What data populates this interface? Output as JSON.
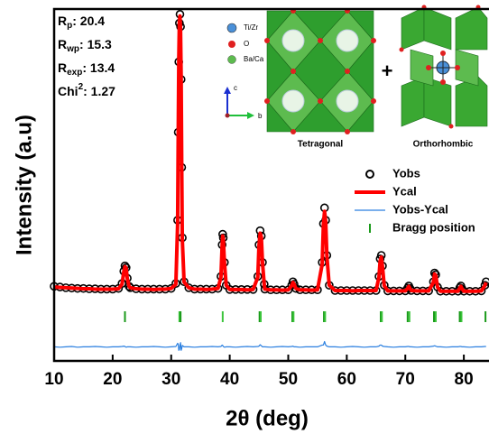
{
  "chart_data": {
    "type": "line",
    "x_label": "2θ (deg)",
    "y_label": "Intensity (a.u)",
    "xlim": [
      10,
      84.3
    ],
    "ylim": [
      0,
      100
    ],
    "xticks": [
      10,
      20,
      30,
      40,
      50,
      60,
      70,
      80
    ],
    "legend": "right",
    "x": [
      10,
      11,
      12,
      13,
      14,
      15,
      16,
      17,
      18,
      19,
      20,
      21,
      21.6,
      21.9,
      22.1,
      22.3,
      22.5,
      22.8,
      23,
      24,
      25,
      26,
      27,
      28,
      29,
      30,
      30.8,
      31.1,
      31.2,
      31.3,
      31.4,
      31.5,
      31.6,
      31.7,
      31.8,
      31.9,
      32.2,
      33,
      34,
      35,
      36,
      37,
      38,
      38.5,
      38.7,
      38.8,
      38.9,
      39.1,
      39.4,
      40,
      41,
      42,
      43,
      44,
      44.8,
      45.0,
      45.2,
      45.4,
      45.6,
      45.9,
      46,
      47,
      48,
      49,
      50,
      50.6,
      50.8,
      51.0,
      51.3,
      52,
      53,
      54,
      55,
      55.8,
      56.0,
      56.2,
      56.4,
      56.6,
      57.0,
      58,
      59,
      60,
      61,
      62,
      63,
      64,
      65,
      65.5,
      65.7,
      65.9,
      66.1,
      66.4,
      67,
      68,
      69,
      70,
      70.4,
      70.6,
      70.8,
      71,
      72,
      73,
      74,
      74.8,
      75.0,
      75.2,
      75.5,
      76,
      77,
      78,
      79,
      79.3,
      79.5,
      79.7,
      80,
      81,
      82,
      83,
      83.6,
      83.8
    ],
    "series": [
      {
        "name": "Yobs",
        "kind": "scatter",
        "color": "#000000",
        "values": [
          21.2,
          21.0,
          20.8,
          20.7,
          20.6,
          20.6,
          20.5,
          20.5,
          20.4,
          20.4,
          20.4,
          20.6,
          22.0,
          25.5,
          27.0,
          26.5,
          23.5,
          21.2,
          20.8,
          20.5,
          20.4,
          20.4,
          20.4,
          20.4,
          20.4,
          20.6,
          22.0,
          40,
          65,
          85,
          96,
          98.5,
          95,
          80,
          55,
          35,
          22.5,
          20.8,
          20.4,
          20.4,
          20.4,
          20.4,
          20.6,
          24.0,
          33.0,
          36.0,
          35.0,
          28.0,
          21.5,
          20.3,
          20.3,
          20.3,
          20.3,
          20.3,
          24.0,
          33.0,
          37.0,
          35.5,
          28.0,
          21.8,
          20.4,
          20.2,
          20.2,
          20.2,
          20.2,
          21.5,
          22.5,
          21.8,
          20.6,
          20.2,
          20.2,
          20.2,
          20.2,
          28.0,
          39.0,
          43.5,
          40.0,
          30.0,
          21.5,
          20.0,
          20.0,
          20.0,
          20.0,
          20.0,
          20.0,
          20.0,
          20.0,
          24.0,
          29.0,
          30.0,
          27.0,
          21.5,
          19.9,
          19.9,
          19.9,
          19.9,
          20.7,
          21.3,
          20.6,
          20.0,
          19.9,
          19.9,
          19.9,
          22.5,
          25.0,
          24.5,
          21.0,
          19.8,
          19.8,
          19.8,
          19.8,
          20.8,
          21.3,
          20.5,
          19.8,
          19.8,
          19.8,
          19.9,
          21.5,
          22.5
        ]
      },
      {
        "name": "Ycal",
        "kind": "line",
        "width": 4,
        "color": "#ff0000",
        "values": [
          21.0,
          20.9,
          20.8,
          20.7,
          20.6,
          20.5,
          20.5,
          20.4,
          20.4,
          20.4,
          20.4,
          20.5,
          21.8,
          25.3,
          26.8,
          26.4,
          23.4,
          21.2,
          20.8,
          20.5,
          20.4,
          20.4,
          20.3,
          20.4,
          20.4,
          20.6,
          21.8,
          39,
          64,
          86,
          96.5,
          98,
          94,
          81,
          55.5,
          34.5,
          22.4,
          20.8,
          20.4,
          20.4,
          20.3,
          20.4,
          20.6,
          23.8,
          32.5,
          35.5,
          34.8,
          27.9,
          21.5,
          20.3,
          20.3,
          20.3,
          20.2,
          20.3,
          23.8,
          32.8,
          36.3,
          35.2,
          28.0,
          21.7,
          20.4,
          20.2,
          20.2,
          20.1,
          20.2,
          21.4,
          22.3,
          21.8,
          20.6,
          20.2,
          20.2,
          20.1,
          20.2,
          27.5,
          38.5,
          42.5,
          39.5,
          29.8,
          21.5,
          20.0,
          20.0,
          20.0,
          19.9,
          20.0,
          20.0,
          20.0,
          20.0,
          23.8,
          28.5,
          29.5,
          26.8,
          21.4,
          19.9,
          19.9,
          19.9,
          19.9,
          20.6,
          21.2,
          20.6,
          20.0,
          19.9,
          19.9,
          19.9,
          22.3,
          24.7,
          24.3,
          21.0,
          19.8,
          19.8,
          19.8,
          19.8,
          20.7,
          21.2,
          20.5,
          19.8,
          19.8,
          19.8,
          19.9,
          21.4,
          22.3
        ]
      },
      {
        "name": "Yobs-Ycal",
        "kind": "line",
        "width": 1.2,
        "color": "#2a7fe0",
        "values": [
          4.0,
          3.9,
          4.0,
          4.1,
          3.9,
          4.0,
          4.0,
          4.1,
          4.0,
          3.9,
          4.0,
          4.0,
          4.1,
          4.2,
          4.1,
          3.9,
          4.0,
          4.0,
          4.0,
          3.9,
          4.0,
          4.0,
          4.1,
          4.0,
          3.9,
          4.0,
          4.1,
          5.0,
          4.8,
          3.0,
          3.2,
          4.5,
          5.2,
          3.0,
          3.5,
          4.4,
          4.0,
          4.0,
          3.9,
          4.0,
          4.0,
          4.1,
          4.0,
          4.1,
          4.5,
          4.4,
          4.1,
          3.9,
          4.0,
          4.0,
          3.9,
          4.0,
          4.1,
          4.0,
          4.1,
          4.2,
          4.6,
          4.3,
          4.0,
          4.0,
          4.0,
          3.9,
          4.0,
          4.1,
          4.0,
          4.1,
          4.2,
          4.0,
          4.0,
          3.9,
          4.0,
          4.0,
          4.0,
          4.5,
          4.5,
          5.5,
          4.5,
          4.2,
          4.0,
          4.0,
          3.9,
          4.0,
          4.1,
          4.0,
          3.9,
          4.0,
          4.0,
          4.2,
          4.5,
          4.5,
          4.2,
          4.1,
          4.0,
          3.9,
          4.0,
          4.0,
          4.1,
          4.1,
          4.0,
          4.0,
          3.9,
          4.0,
          4.0,
          4.2,
          4.3,
          4.2,
          4.0,
          4.0,
          3.9,
          4.0,
          4.0,
          4.1,
          4.1,
          4.0,
          4.0,
          3.9,
          4.0,
          4.0,
          4.1,
          4.1
        ]
      }
    ],
    "bragg": {
      "name": "Bragg position",
      "color": "#1a9a1a",
      "x": [
        22.1,
        31.4,
        31.6,
        38.8,
        45.1,
        45.3,
        50.7,
        50.9,
        56.1,
        56.3,
        65.8,
        66.0,
        70.4,
        70.7,
        74.9,
        75.2,
        79.3,
        79.6,
        83.7
      ]
    },
    "stats": [
      {
        "symbol": "R",
        "sub": "p",
        "text": ": 20.4"
      },
      {
        "symbol": "R",
        "sub": "wp",
        "text": ": 15.3"
      },
      {
        "symbol": "R",
        "sub": "exp",
        "text": ": 13.4"
      },
      {
        "symbol": "Chi",
        "sup": "2",
        "text": ": 1.27"
      }
    ],
    "inset": {
      "atoms": [
        "Ti/Zr",
        "O",
        "Ba/Ca"
      ],
      "axes": [
        "c",
        "b"
      ],
      "phases": [
        "Tetragonal",
        "Orthorhombic"
      ],
      "joiner": "+"
    }
  }
}
